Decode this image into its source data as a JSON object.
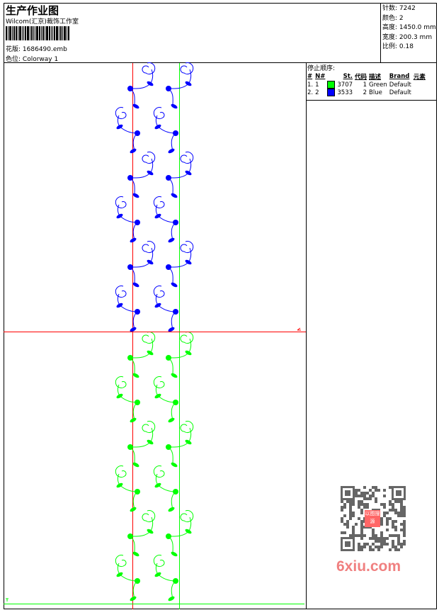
{
  "header": {
    "title": "生产作业图",
    "company": "Wilcom(汇京)裁饰工作室",
    "design_label": "花版:",
    "design_value": "1686490.emb",
    "colorway_label": "色位:",
    "colorway_value": "Colorway 1"
  },
  "info": [
    {
      "label": "针数:",
      "value": "7242"
    },
    {
      "label": "颜色:",
      "value": "2"
    },
    {
      "label": "高度:",
      "value": "1450.0 mm"
    },
    {
      "label": "宽度:",
      "value": "200.3 mm"
    },
    {
      "label": "比例:",
      "value": "0.18"
    }
  ],
  "stop_sequence": {
    "title": "停止顺序:",
    "columns": [
      "#",
      "N#",
      "",
      "St.",
      "代码",
      "描述",
      "Brand",
      "元素"
    ],
    "rows": [
      {
        "idx": "1.",
        "n": "1",
        "color": "#00ff00",
        "st": "3707",
        "code": "1",
        "desc": "Green",
        "brand": "Default"
      },
      {
        "idx": "2.",
        "n": "2",
        "color": "#0000ff",
        "st": "3533",
        "code": "2",
        "desc": "Blue",
        "brand": "Default"
      }
    ]
  },
  "colors": {
    "blue": "#0000ff",
    "green": "#00ff00",
    "red": "#ff0000"
  },
  "watermark": {
    "text": "6xiu.com",
    "seal": "以图搜源"
  }
}
